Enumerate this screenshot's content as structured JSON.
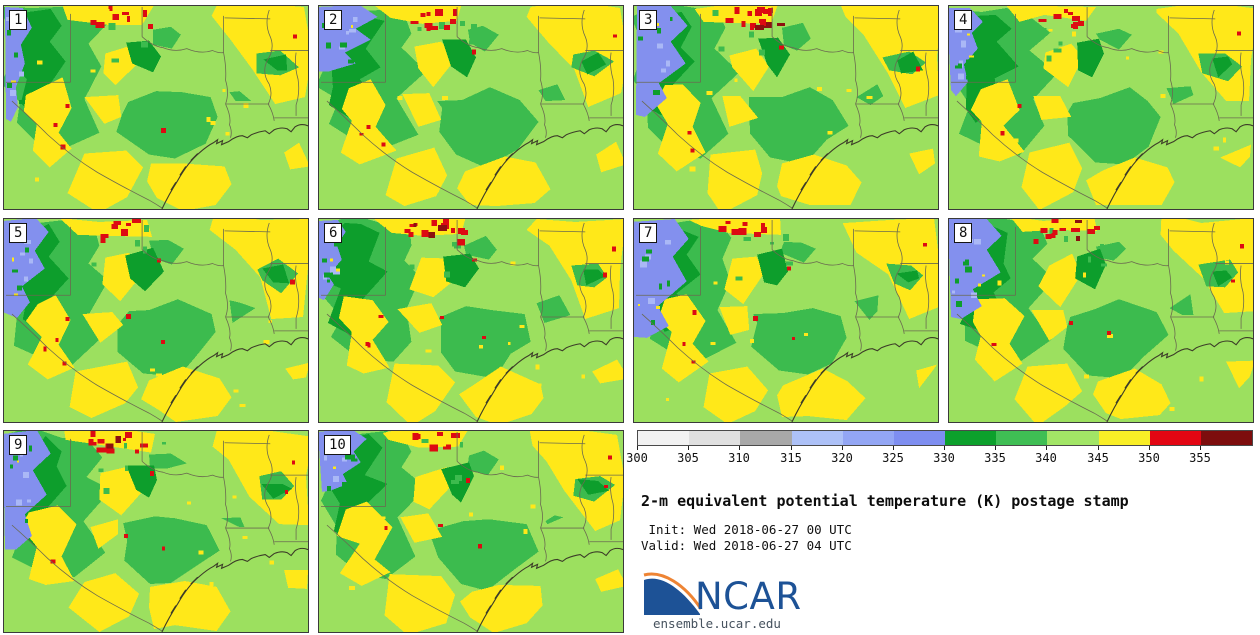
{
  "panels": [
    {
      "label": "1"
    },
    {
      "label": "2"
    },
    {
      "label": "3"
    },
    {
      "label": "4"
    },
    {
      "label": "5"
    },
    {
      "label": "6"
    },
    {
      "label": "7"
    },
    {
      "label": "8"
    },
    {
      "label": "9"
    },
    {
      "label": "10"
    }
  ],
  "legend": {
    "colorbar": {
      "tick_labels": [
        "300",
        "305",
        "310",
        "315",
        "320",
        "325",
        "330",
        "335",
        "340",
        "345",
        "350",
        "355"
      ],
      "segment_colors": [
        "#f2f2f2",
        "#e0e0e0",
        "#a8a8a8",
        "#adc1f7",
        "#93a6f4",
        "#7e8ef0",
        "#0ca02c",
        "#3fbe54",
        "#a2e566",
        "#f9ee26",
        "#e30613",
        "#7d0d0d"
      ]
    },
    "title": "2-m equivalent potential temperature (K) postage stamp",
    "init_label": " Init: Wed 2018-06-27 00 UTC",
    "valid_label": "Valid: Wed 2018-06-27 04 UTC",
    "logo_text": "NCAR",
    "logo_url": "ensemble.ucar.edu"
  },
  "map_colors": {
    "light_green": "#9ce05f",
    "yellow": "#ffe819",
    "medium_green": "#3cbb4e",
    "dark_green": "#0d9e2c",
    "blue": "#8390ee",
    "light_blue": "#aab8f6",
    "red": "#dd0a12",
    "dark_red": "#8c1010",
    "state_border": "#6a6a50",
    "coast": "#3c3c28"
  }
}
